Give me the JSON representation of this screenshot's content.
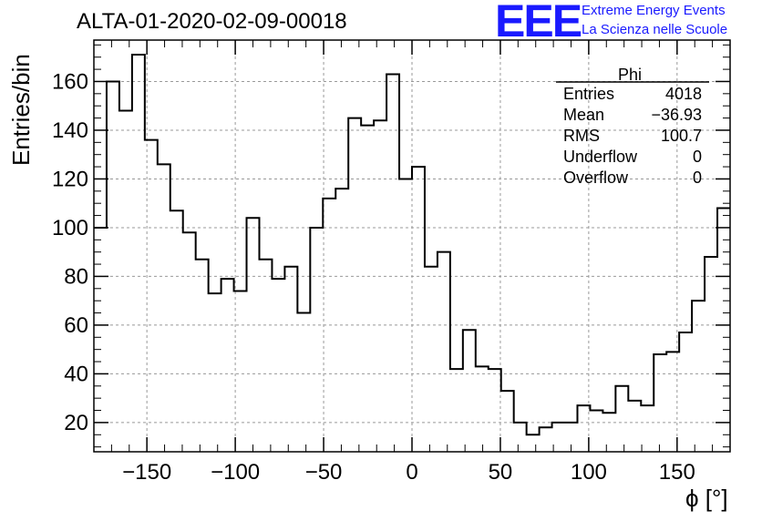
{
  "chart_data": {
    "type": "bar",
    "subtype": "histogram-step",
    "title": "ALTA-01-2020-02-09-00018",
    "xlabel": "ϕ [°]",
    "ylabel": "Entries/bin",
    "xlim": [
      -180,
      180
    ],
    "ylim": [
      8,
      177
    ],
    "grid": true,
    "bin_width": 7.2,
    "x_ticks": [
      -150,
      -100,
      -50,
      0,
      50,
      100,
      150
    ],
    "x_tick_labels": [
      "−150",
      "−100",
      "−50",
      "0",
      "50",
      "100",
      "150"
    ],
    "y_ticks": [
      20,
      40,
      60,
      80,
      100,
      120,
      140,
      160
    ],
    "y_tick_labels": [
      "20",
      "40",
      "60",
      "80",
      "100",
      "120",
      "140",
      "160"
    ],
    "values": [
      100,
      160,
      148,
      171,
      136,
      126,
      107,
      98,
      87,
      73,
      79,
      74,
      104,
      87,
      79,
      84,
      65,
      100,
      112,
      116,
      145,
      142,
      144,
      163,
      120,
      125,
      84,
      90,
      42,
      58,
      43,
      42,
      33,
      20,
      15,
      18,
      20,
      20,
      27,
      25,
      24,
      35,
      29,
      27,
      48,
      49,
      57,
      70,
      88,
      108
    ],
    "line_color": "#000000"
  },
  "logo": {
    "text": "EEE",
    "line1": "Extreme Energy Events",
    "line2": "La Scienza nelle Scuole",
    "color": "#1a1aff"
  },
  "stats": {
    "title": "Phi",
    "rows": [
      {
        "key": "Entries",
        "value": "4018"
      },
      {
        "key": "Mean",
        "value": "−36.93"
      },
      {
        "key": "RMS",
        "value": "100.7"
      },
      {
        "key": "Underflow",
        "value": "0"
      },
      {
        "key": "Overflow",
        "value": "0"
      }
    ]
  }
}
